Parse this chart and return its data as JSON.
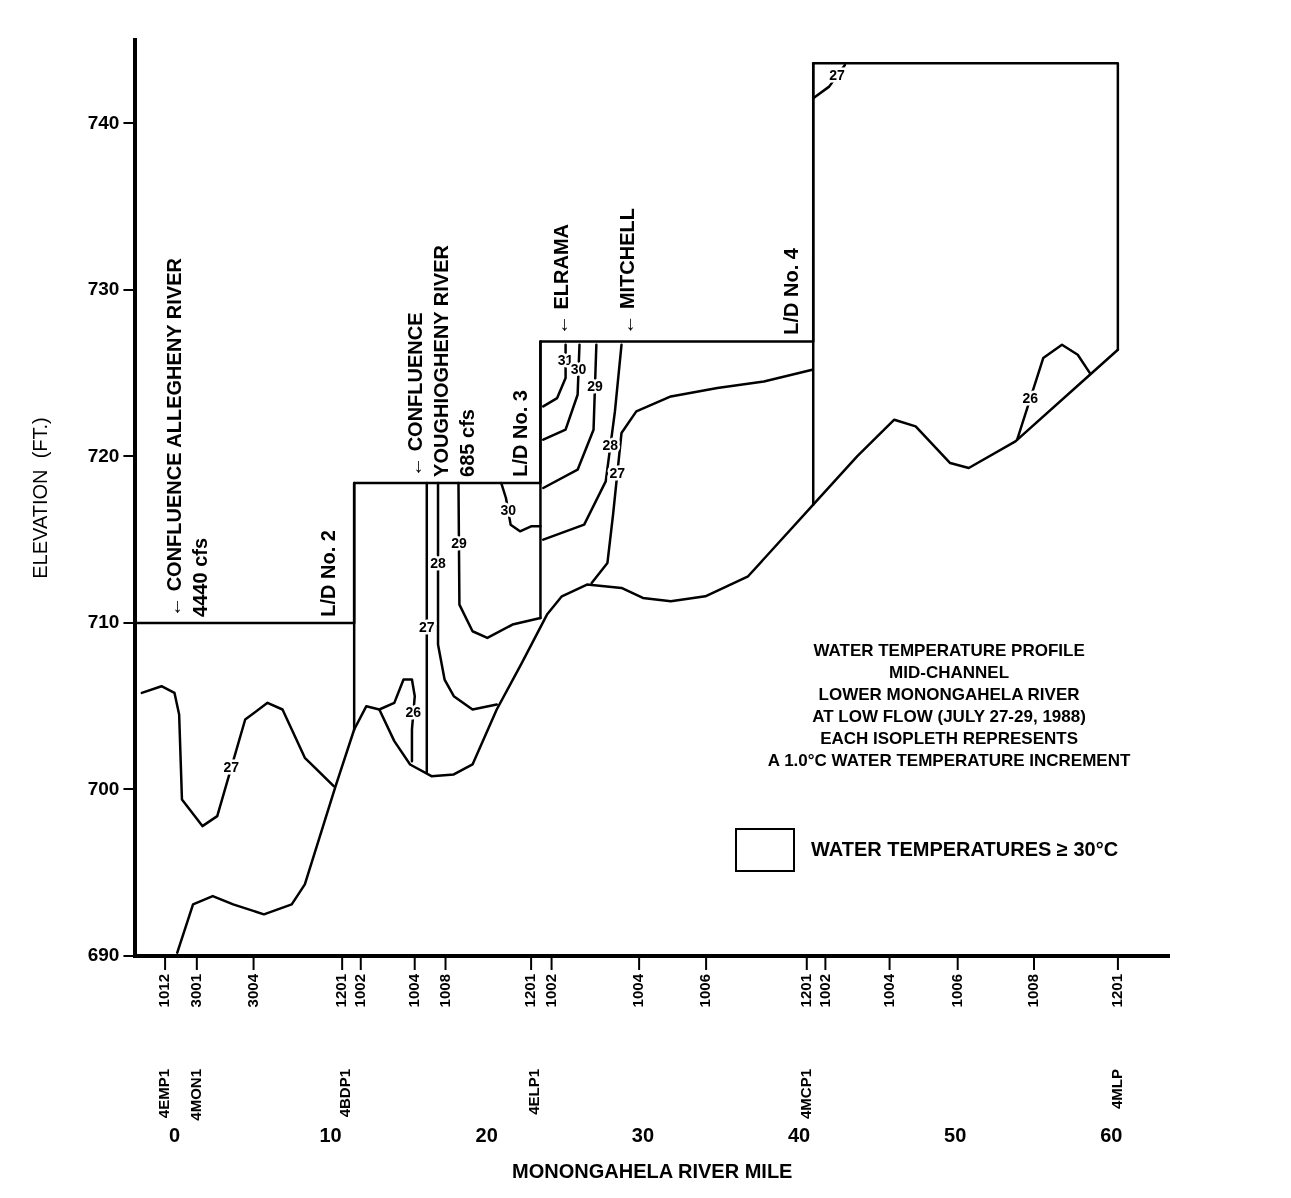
{
  "chart_data": {
    "type": "line",
    "title": "WATER TEMPERATURE PROFILE",
    "subtitle": "MID-CHANNEL\nLOWER MONONGAHELA RIVER\nAT LOW FLOW (JULY 27-29, 1988)\nEACH ISOPLETH REPRESENTS\nA 1.0°C WATER TEMPERATURE INCREMENT",
    "xlabel": "MONONGAHELA RIVER MILE",
    "ylabel": "ELEVATION  (FT.)",
    "marker": "none",
    "line_style": "solid",
    "xlim": [
      -2.5,
      63.7
    ],
    "xticks": [
      0,
      10,
      20,
      30,
      40,
      50,
      60
    ],
    "legend_title": "WATER TEMPERATURES ≥ 30°C",
    "ylim": [
      690,
      745
    ],
    "yticks": [
      690,
      700,
      710,
      720,
      730,
      740
    ],
    "series": [
      {
        "color": "#000000",
        "x": [
          0.18,
          1.19,
          2.45,
          3.76,
          5.73,
          7.51,
          8.35,
          10.32,
          11.51,
          12.29,
          13.12,
          14.08,
          15.09,
          16.46,
          17.89,
          19.09,
          20.64,
          22.25,
          23.86,
          24.81,
          26.42,
          28.63,
          30.0,
          31.79,
          34.0,
          36.74,
          40.91,
          43.72,
          46.1,
          47.47,
          49.68,
          50.87,
          53.86,
          58.63,
          60.42
        ],
        "values": [
          690.2,
          693.1,
          693.6,
          693.1,
          692.5,
          693.1,
          694.3,
          700.2,
          703.6,
          705.0,
          704.8,
          702.9,
          701.5,
          700.8,
          700.9,
          701.5,
          704.8,
          707.6,
          710.5,
          711.6,
          712.3,
          712.1,
          711.5,
          711.3,
          711.6,
          712.8,
          717.1,
          720.0,
          722.2,
          721.8,
          719.6,
          719.3,
          720.9,
          724.9,
          726.4
        ]
      },
      {
        "color": "#000000",
        "x": [
          -2.5,
          11.51,
          11.51,
          23.44,
          23.44,
          40.91,
          40.91,
          60.42,
          60.42
        ],
        "values": [
          710,
          710,
          718.4,
          718.4,
          726.9,
          726.9,
          743.6,
          743.6,
          726.4
        ]
      },
      {
        "color": "#000000",
        "x": [
          11.51,
          11.51
        ],
        "values": [
          703.6,
          718.4
        ]
      },
      {
        "color": "#000000",
        "x": [
          23.44,
          23.44
        ],
        "values": [
          710.3,
          726.9
        ]
      },
      {
        "color": "#000000",
        "x": [
          40.91,
          40.91
        ],
        "values": [
          717.1,
          743.6
        ]
      },
      {
        "name": "27",
        "color": "#000000",
        "x": [
          -2.09,
          -0.83,
          0,
          0.3,
          0.48,
          1.79,
          2.74,
          4.53,
          5.96,
          6.92,
          8.35,
          10.2
        ],
        "values": [
          705.8,
          706.2,
          705.8,
          704.5,
          699.4,
          697.8,
          698.4,
          704.2,
          705.2,
          704.8,
          701.9,
          700.2
        ]
      },
      {
        "name": "26",
        "color": "#000000",
        "x": [
          13.12,
          14.08,
          14.67,
          15.21,
          15.39,
          15.21,
          15.21
        ],
        "values": [
          704.8,
          705.2,
          706.6,
          706.6,
          705.6,
          703.6,
          701.7
        ]
      },
      {
        "name": "27",
        "color": "#000000",
        "x": [
          16.16,
          16.16
        ],
        "values": [
          718.4,
          701.0
        ]
      },
      {
        "name": "28",
        "color": "#000000",
        "x": [
          16.88,
          16.88,
          17.3,
          17.89,
          19.09,
          20.64
        ],
        "values": [
          718.4,
          708.7,
          706.6,
          705.6,
          704.8,
          705.1
        ]
      },
      {
        "name": "29",
        "color": "#000000",
        "x": [
          18.19,
          18.25,
          19.09,
          20.04,
          21.65,
          23.44
        ],
        "values": [
          718.4,
          711.1,
          709.5,
          709.1,
          709.9,
          710.3
        ]
      },
      {
        "name": "30",
        "color": "#000000",
        "x": [
          20.93,
          21.23,
          21.53,
          22.13,
          22.84,
          23.44
        ],
        "values": [
          718.4,
          717.5,
          715.9,
          715.5,
          715.8,
          715.8
        ]
      },
      {
        "name": "31",
        "color": "#000000",
        "x": [
          25.05,
          25.05,
          24.51,
          23.62
        ],
        "values": [
          726.7,
          724.7,
          723.5,
          723.0
        ]
      },
      {
        "name": "30",
        "color": "#000000",
        "x": [
          25.94,
          25.82,
          25.05,
          23.62
        ],
        "values": [
          726.7,
          723.7,
          721.6,
          721.0
        ]
      },
      {
        "name": "29",
        "color": "#000000",
        "x": [
          27.02,
          26.84,
          25.82,
          23.62
        ],
        "values": [
          726.7,
          721.6,
          719.2,
          718.1
        ]
      },
      {
        "name": "28",
        "color": "#000000",
        "x": [
          28.63,
          28.21,
          27.62,
          26.24,
          23.62
        ],
        "values": [
          726.7,
          722.7,
          718.5,
          715.9,
          715.0
        ]
      },
      {
        "name": "27",
        "color": "#000000",
        "x": [
          26.72,
          27.73,
          28.09,
          28.63,
          29.58,
          31.79,
          34.77,
          37.75,
          40.85
        ],
        "values": [
          712.4,
          713.6,
          716.5,
          721.4,
          722.7,
          723.6,
          724.1,
          724.5,
          725.2
        ]
      },
      {
        "name": "27",
        "color": "#000000",
        "x": [
          40.91,
          41.93,
          42.94
        ],
        "values": [
          741.5,
          742.2,
          743.5
        ]
      },
      {
        "name": "26",
        "color": "#000000",
        "x": [
          53.97,
          55.64,
          56.84,
          57.85,
          58.63
        ],
        "values": [
          721.0,
          725.9,
          726.7,
          726.1,
          725.0
        ]
      }
    ],
    "annotations": [
      {
        "text": "← CONFLUENCE ALLEGHENY RIVER\n4440 cfs",
        "x": 0,
        "y": 710
      },
      {
        "text": "← CONFLUENCE\nYOUGHIOGHENY RIVER\n685 cfs",
        "x": 15.39,
        "y": 718.4
      },
      {
        "text": "← ELRAMA",
        "x": 24.74,
        "y": 726.9
      },
      {
        "text": "← MITCHELL",
        "x": 28.99,
        "y": 726.9
      },
      {
        "text": "L/D No. 2",
        "x": 9.85,
        "y": 710
      },
      {
        "text": "L/D No. 3",
        "x": 22.1,
        "y": 718.4
      },
      {
        "text": "L/D No. 4",
        "x": 39.5,
        "y": 726.9
      },
      "1012",
      "3001",
      "3004",
      "1201",
      "1002",
      "1004",
      "1008",
      "1201",
      "1002",
      "1004",
      "1006",
      "1201",
      "1002",
      "1004",
      "1006",
      "1008",
      "1201",
      "4EMP1",
      "4MON1",
      "4BDP1",
      "4ELP1",
      "4MCP1",
      "4MLP"
    ]
  }
}
